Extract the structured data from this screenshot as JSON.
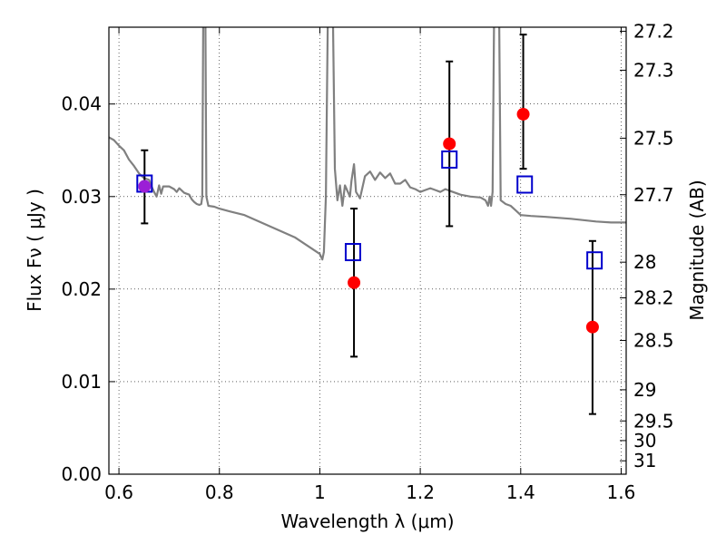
{
  "chart_data": {
    "type": "scatter",
    "xlabel": "Wavelength  λ (μm)",
    "ylabel": "Flux  Fν  ( μJy )",
    "ylabel_right": "Magnitude (AB)",
    "xlim": [
      0.58,
      1.61
    ],
    "ylim": [
      0.0,
      0.0483
    ],
    "grid": true,
    "x_ticks": [
      {
        "value": 0.6,
        "label": "0.6"
      },
      {
        "value": 0.8,
        "label": "0.8"
      },
      {
        "value": 1.0,
        "label": "1"
      },
      {
        "value": 1.2,
        "label": "1.2"
      },
      {
        "value": 1.4,
        "label": "1.4"
      },
      {
        "value": 1.6,
        "label": "1.6"
      }
    ],
    "y_ticks": [
      {
        "value": 0.0,
        "label": "0.00"
      },
      {
        "value": 0.01,
        "label": "0.01"
      },
      {
        "value": 0.02,
        "label": "0.02"
      },
      {
        "value": 0.03,
        "label": "0.03"
      },
      {
        "value": 0.04,
        "label": "0.04"
      }
    ],
    "right_ticks": [
      {
        "mag": 27.2,
        "label": "27.2"
      },
      {
        "mag": 27.3,
        "label": "27.3"
      },
      {
        "mag": 27.5,
        "label": "27.5"
      },
      {
        "mag": 27.7,
        "label": "27.7"
      },
      {
        "mag": 28,
        "label": "28"
      },
      {
        "mag": 28.2,
        "label": "28.2"
      },
      {
        "mag": 28.5,
        "label": "28.5"
      },
      {
        "mag": 29,
        "label": "29"
      },
      {
        "mag": 29.5,
        "label": "29.5"
      },
      {
        "mag": 30,
        "label": "30"
      },
      {
        "mag": 31,
        "label": "31"
      }
    ],
    "spectrum": {
      "color": "#808080",
      "points": [
        [
          0.58,
          0.0364
        ],
        [
          0.59,
          0.0361
        ],
        [
          0.6,
          0.0355
        ],
        [
          0.61,
          0.035
        ],
        [
          0.62,
          0.034
        ],
        [
          0.63,
          0.0333
        ],
        [
          0.64,
          0.0325
        ],
        [
          0.65,
          0.032
        ],
        [
          0.66,
          0.0318
        ],
        [
          0.665,
          0.0311
        ],
        [
          0.67,
          0.0305
        ],
        [
          0.675,
          0.03
        ],
        [
          0.68,
          0.0312
        ],
        [
          0.684,
          0.0303
        ],
        [
          0.688,
          0.0311
        ],
        [
          0.7,
          0.0311
        ],
        [
          0.71,
          0.0308
        ],
        [
          0.715,
          0.0305
        ],
        [
          0.72,
          0.0309
        ],
        [
          0.73,
          0.0304
        ],
        [
          0.74,
          0.0302
        ],
        [
          0.745,
          0.0297
        ],
        [
          0.75,
          0.0294
        ],
        [
          0.755,
          0.0292
        ],
        [
          0.76,
          0.0291
        ],
        [
          0.764,
          0.0292
        ],
        [
          0.766,
          0.03
        ],
        [
          0.768,
          0.05
        ],
        [
          0.772,
          0.05
        ],
        [
          0.774,
          0.03
        ],
        [
          0.778,
          0.029
        ],
        [
          0.79,
          0.0289
        ],
        [
          0.8,
          0.0287
        ],
        [
          0.82,
          0.0284
        ],
        [
          0.85,
          0.028
        ],
        [
          0.9,
          0.0268
        ],
        [
          0.95,
          0.0256
        ],
        [
          1.0,
          0.0238
        ],
        [
          1.005,
          0.0232
        ],
        [
          1.008,
          0.024
        ],
        [
          1.012,
          0.03
        ],
        [
          1.016,
          0.05
        ],
        [
          1.026,
          0.05
        ],
        [
          1.03,
          0.033
        ],
        [
          1.035,
          0.0296
        ],
        [
          1.04,
          0.0312
        ],
        [
          1.045,
          0.029
        ],
        [
          1.05,
          0.0312
        ],
        [
          1.06,
          0.03
        ],
        [
          1.063,
          0.0317
        ],
        [
          1.068,
          0.0335
        ],
        [
          1.072,
          0.0305
        ],
        [
          1.08,
          0.0298
        ],
        [
          1.09,
          0.0322
        ],
        [
          1.1,
          0.0327
        ],
        [
          1.11,
          0.0318
        ],
        [
          1.12,
          0.0326
        ],
        [
          1.13,
          0.032
        ],
        [
          1.14,
          0.0325
        ],
        [
          1.15,
          0.0314
        ],
        [
          1.16,
          0.0314
        ],
        [
          1.17,
          0.0318
        ],
        [
          1.18,
          0.031
        ],
        [
          1.19,
          0.0308
        ],
        [
          1.2,
          0.0305
        ],
        [
          1.21,
          0.0307
        ],
        [
          1.22,
          0.0309
        ],
        [
          1.23,
          0.0307
        ],
        [
          1.24,
          0.0305
        ],
        [
          1.25,
          0.0308
        ],
        [
          1.26,
          0.0306
        ],
        [
          1.28,
          0.0302
        ],
        [
          1.3,
          0.03
        ],
        [
          1.32,
          0.0299
        ],
        [
          1.33,
          0.0296
        ],
        [
          1.335,
          0.029
        ],
        [
          1.338,
          0.03
        ],
        [
          1.341,
          0.029
        ],
        [
          1.344,
          0.0305
        ],
        [
          1.347,
          0.05
        ],
        [
          1.357,
          0.05
        ],
        [
          1.36,
          0.0296
        ],
        [
          1.37,
          0.0292
        ],
        [
          1.38,
          0.029
        ],
        [
          1.39,
          0.0285
        ],
        [
          1.4,
          0.028
        ],
        [
          1.42,
          0.0279
        ],
        [
          1.45,
          0.0278
        ],
        [
          1.5,
          0.0276
        ],
        [
          1.55,
          0.0273
        ],
        [
          1.58,
          0.0272
        ],
        [
          1.61,
          0.0272
        ]
      ]
    },
    "series": [
      {
        "marker": "filled-circle",
        "color": "#ff0000",
        "points": [
          {
            "x": 0.651,
            "y": 0.0311,
            "err_low": 0.0271,
            "err_high": 0.035,
            "color": "#9b1fd6"
          },
          {
            "x": 1.068,
            "y": 0.0207,
            "err_low": 0.0127,
            "err_high": 0.0287
          },
          {
            "x": 1.258,
            "y": 0.0357,
            "err_low": 0.0268,
            "err_high": 0.0446
          },
          {
            "x": 1.405,
            "y": 0.0389,
            "err_low": 0.033,
            "err_high": 0.0475
          },
          {
            "x": 1.543,
            "y": 0.0159,
            "err_low": 0.0065,
            "err_high": 0.0252
          }
        ]
      },
      {
        "marker": "open-square",
        "color": "#0000cc",
        "points": [
          {
            "x": 0.651,
            "y": 0.0314
          },
          {
            "x": 1.066,
            "y": 0.024
          },
          {
            "x": 1.258,
            "y": 0.034
          },
          {
            "x": 1.408,
            "y": 0.0313
          },
          {
            "x": 1.547,
            "y": 0.0231
          }
        ]
      }
    ]
  }
}
